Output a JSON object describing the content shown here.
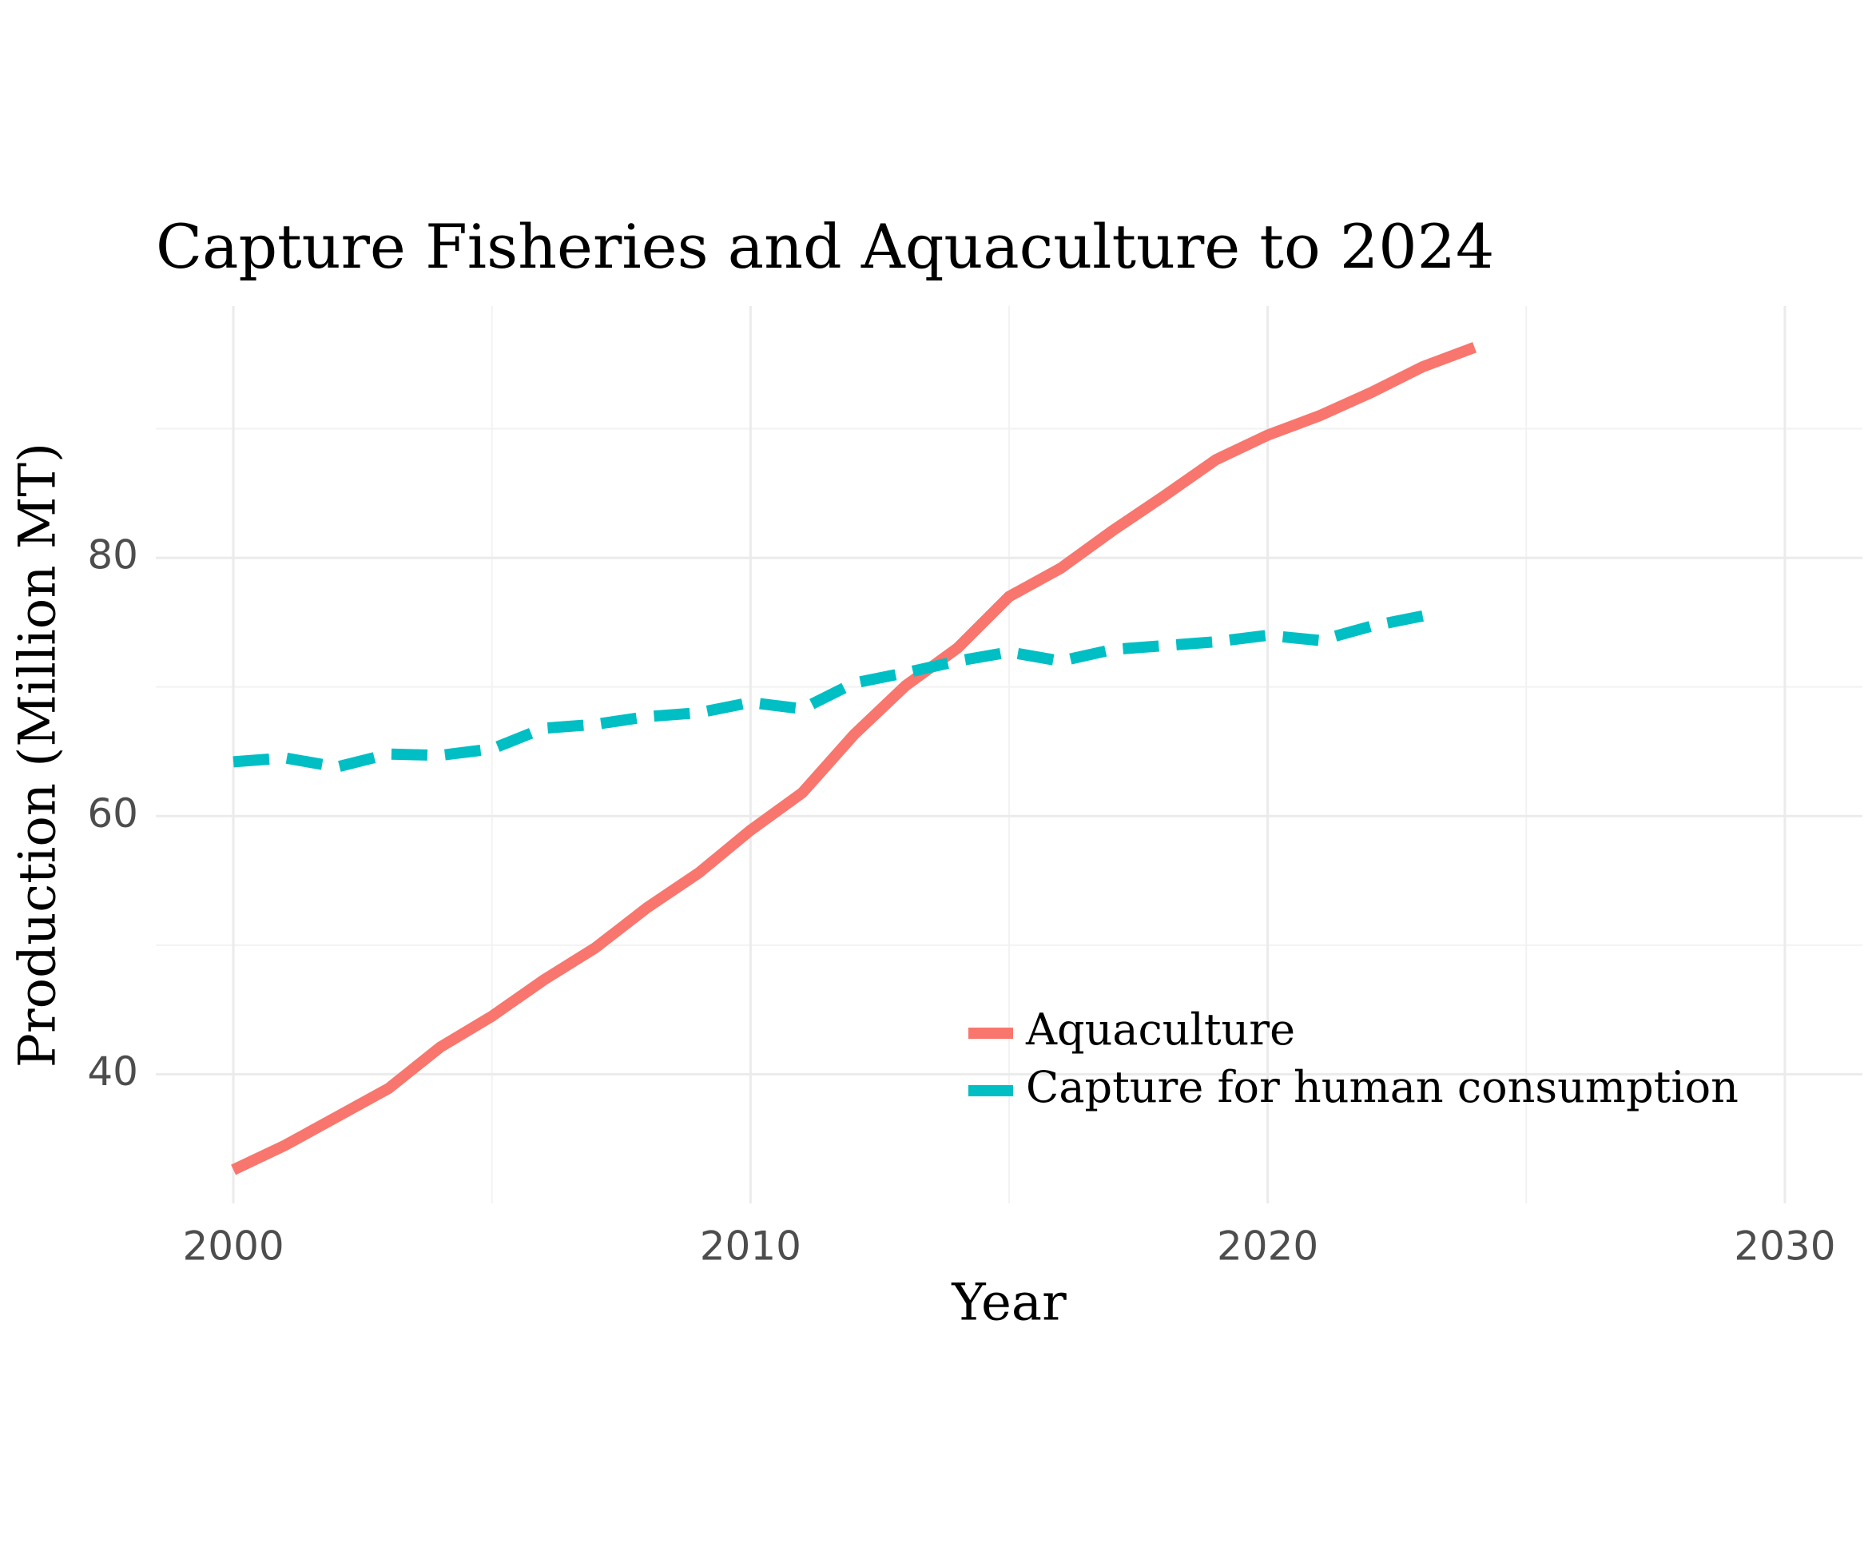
{
  "chart_data": {
    "type": "line",
    "title": "Capture Fisheries and Aquaculture to 2024",
    "x_label": "Year",
    "y_label": "Production (Million MT)",
    "series": [
      {
        "name": "Aquaculture",
        "color": "#f8766d",
        "dash": "solid",
        "x": [
          2000,
          2001,
          2002,
          2003,
          2004,
          2005,
          2006,
          2007,
          2008,
          2009,
          2010,
          2011,
          2012,
          2013,
          2014,
          2015,
          2016,
          2017,
          2018,
          2019,
          2020,
          2021,
          2022,
          2023,
          2024
        ],
        "values": [
          32.6,
          34.5,
          36.7,
          38.9,
          42.1,
          44.5,
          47.3,
          49.8,
          52.9,
          55.6,
          58.9,
          61.8,
          66.3,
          70.1,
          73.0,
          77.0,
          79.2,
          82.1,
          84.8,
          87.6,
          89.5,
          91.0,
          92.8,
          94.8,
          96.3
        ]
      },
      {
        "name": "Capture for human consumption",
        "color": "#00bfc4",
        "dash": "dashed",
        "x": [
          2000,
          2001,
          2002,
          2003,
          2004,
          2005,
          2006,
          2007,
          2008,
          2009,
          2010,
          2011,
          2012,
          2013,
          2014,
          2015,
          2016,
          2017,
          2018,
          2019,
          2020,
          2021,
          2022,
          2023
        ],
        "values": [
          64.2,
          64.5,
          63.8,
          64.8,
          64.7,
          65.2,
          66.8,
          67.1,
          67.7,
          68.0,
          68.8,
          68.3,
          70.3,
          71.1,
          72.0,
          72.7,
          72.0,
          72.9,
          73.2,
          73.5,
          74.0,
          73.6,
          74.7,
          75.5
        ]
      }
    ],
    "xlim": [
      1998.5,
      2031.5
    ],
    "ylim": [
      30,
      99.5
    ],
    "xticks": [
      2000,
      2010,
      2020,
      2030
    ],
    "yticks": [
      40,
      60,
      80
    ],
    "xminor": [
      2005,
      2015,
      2025
    ],
    "yminor": [
      50,
      70,
      90
    ],
    "grid": true,
    "legend_position": "bottom-right"
  }
}
